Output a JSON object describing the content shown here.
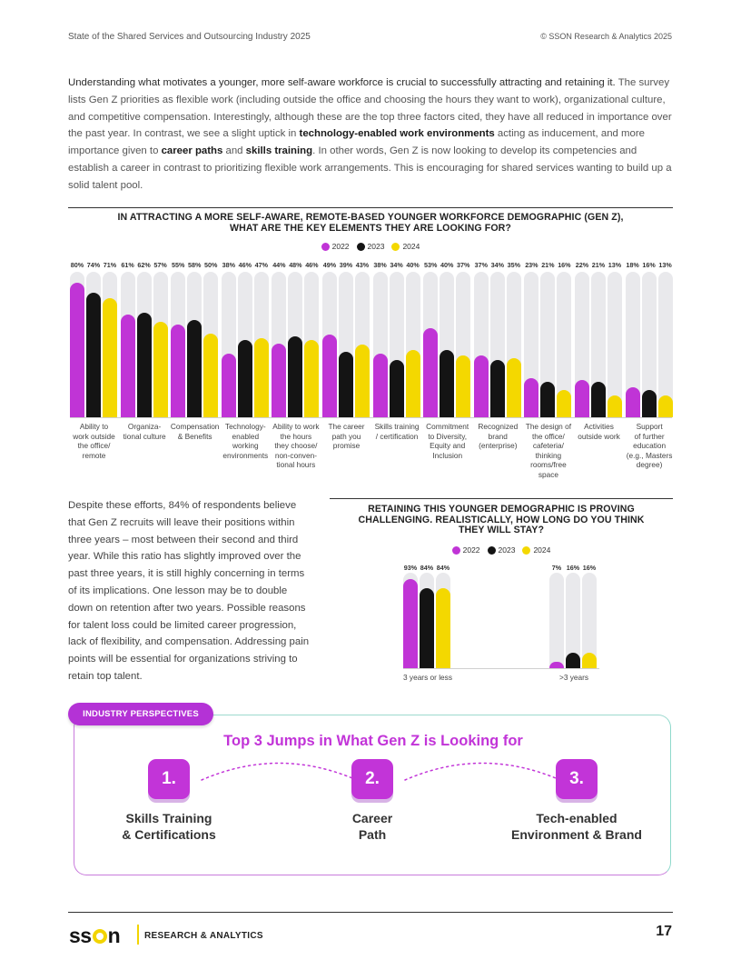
{
  "header": {
    "left": "State of the Shared Services and Outsourcing Industry 2025",
    "right": "© SSON Research & Analytics 2025"
  },
  "intro": {
    "s1": "Understanding what motivates a younger, more self-aware workforce is crucial to successfully attracting and retaining it.",
    "s2": " The survey lists Gen Z priorities as flexible work (including outside the office and choosing the hours they want to work), organizational culture, and competitive compensation. Interestingly, although these are the top three factors cited, they have all reduced in importance over the past year. In contrast, we see a slight uptick in ",
    "b1": "technology-enabled work environments",
    "s3": " acting as inducement, and more importance given to ",
    "b2": "career paths",
    "s4": " and ",
    "b3": "skills training",
    "s5": ". In other words, Gen Z is now looking to develop its competencies and establish a career in contrast to prioritizing flexible work arrangements. This is encouraging for shared services wanting to build up a solid talent pool."
  },
  "legend": {
    "years": [
      "2022",
      "2023",
      "2024"
    ],
    "colors": [
      "#c034d6",
      "#141414",
      "#f4d800"
    ],
    "track": "#e9e9ec"
  },
  "chart_data": [
    {
      "type": "bar",
      "title_line1": "IN ATTRACTING A MORE SELF-AWARE, REMOTE-BASED YOUNGER WORKFORCE DEMOGRAPHIC (GEN Z),",
      "title_line2": "WHAT ARE THE KEY ELEMENTS THEY ARE LOOKING FOR?",
      "unit": "%",
      "ylim": [
        0,
        100
      ],
      "categories": [
        [
          "Ability to",
          "work outside",
          "the office/",
          "remote"
        ],
        [
          "Organiza-",
          "tional culture"
        ],
        [
          "Compensation",
          "& Benefits"
        ],
        [
          "Technology-",
          "enabled",
          "working",
          "environments"
        ],
        [
          "Ability to work",
          "the hours",
          "they choose/",
          "non-conven-",
          "tional hours"
        ],
        [
          "The career",
          "path you",
          "promise"
        ],
        [
          "Skills training",
          "/ certification"
        ],
        [
          "Commitment",
          "to Diversity,",
          "Equity and",
          "Inclusion"
        ],
        [
          "Recognized",
          "brand",
          "(enterprise)"
        ],
        [
          "The design of",
          "the office/",
          "cafeteria/",
          "thinking",
          "rooms/free",
          "space"
        ],
        [
          "Activities",
          "outside work"
        ],
        [
          "Support",
          "of further",
          "education",
          "(e.g., Masters",
          "degree)"
        ]
      ],
      "series": [
        {
          "name": "2022",
          "values": [
            80,
            61,
            55,
            38,
            44,
            49,
            38,
            53,
            37,
            23,
            22,
            18
          ]
        },
        {
          "name": "2023",
          "values": [
            74,
            62,
            58,
            46,
            48,
            39,
            34,
            40,
            34,
            21,
            21,
            16
          ]
        },
        {
          "name": "2024",
          "values": [
            71,
            57,
            50,
            47,
            46,
            43,
            40,
            37,
            35,
            16,
            13,
            13
          ]
        }
      ]
    },
    {
      "type": "bar",
      "title_line1": "RETAINING THIS YOUNGER DEMOGRAPHIC IS PROVING",
      "title_line2": "CHALLENGING. REALISTICALLY, HOW LONG DO YOU THINK",
      "title_line3": "THEY WILL STAY?",
      "unit": "%",
      "ylim": [
        0,
        100
      ],
      "categories": [
        "3 years or less",
        ">3 years"
      ],
      "series": [
        {
          "name": "2022",
          "values": [
            93,
            7
          ]
        },
        {
          "name": "2023",
          "values": [
            84,
            16
          ]
        },
        {
          "name": "2024",
          "values": [
            84,
            16
          ]
        }
      ]
    }
  ],
  "retention_text": "Despite these efforts, 84% of respondents believe that Gen Z recruits will leave their positions within three years – most between their second and third year. While this ratio has slightly improved over the past three years, it is still highly concerning in terms of its implications. One lesson may be to double down on retention after two years. Possible reasons for talent loss could be limited career progression, lack of flexibility, and compensation. Addressing pain points will be essential for organizations striving to retain top talent.",
  "perspectives": {
    "badge": "INDUSTRY PERSPECTIVES",
    "title": "Top 3 Jumps in What Gen Z is Looking for",
    "steps": [
      {
        "num": "1.",
        "line1": "Skills Training",
        "line2": "& Certifications"
      },
      {
        "num": "2.",
        "line1": "Career",
        "line2": "Path"
      },
      {
        "num": "3.",
        "line1": "Tech-enabled",
        "line2": "Environment & Brand"
      }
    ]
  },
  "footer": {
    "logo_left": "ss",
    "logo_right": "n",
    "tagline": "RESEARCH & ANALYTICS",
    "page": "17"
  }
}
